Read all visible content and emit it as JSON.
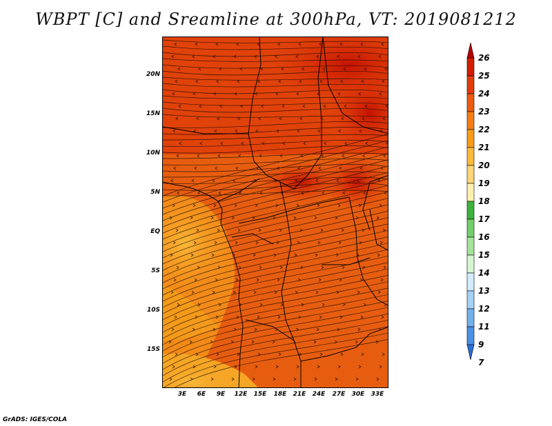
{
  "title": "WBPT [C] and Sreamline at 300hPa, VT: 2019081212",
  "credit": "GrADS: IGES/COLA",
  "map": {
    "lat_labels": [
      "20N",
      "15N",
      "10N",
      "5N",
      "EQ",
      "5S",
      "10S",
      "15S"
    ],
    "lon_labels": [
      "3E",
      "6E",
      "9E",
      "12E",
      "15E",
      "18E",
      "21E",
      "24E",
      "27E",
      "30E",
      "33E"
    ]
  },
  "colorbar": {
    "labels": [
      "26",
      "25",
      "24",
      "23",
      "22",
      "21",
      "20",
      "19",
      "18",
      "17",
      "16",
      "15",
      "14",
      "13",
      "12",
      "11",
      "9",
      "7"
    ],
    "colors": [
      "#b40000",
      "#d21e00",
      "#e33c0c",
      "#ee5b12",
      "#f57d16",
      "#f99c1a",
      "#fbba3b",
      "#fcd674",
      "#fdf0b0",
      "#3db33d",
      "#73cf6b",
      "#a6e39a",
      "#d7f5d2",
      "#d2ecfb",
      "#a4d2f5",
      "#73b1ec",
      "#4a91e3",
      "#2a6fd8"
    ]
  },
  "colors": {
    "hot": "#c81400",
    "warm": "#e75d10",
    "mild": "#f5901a",
    "cool": "#f7b33a"
  }
}
